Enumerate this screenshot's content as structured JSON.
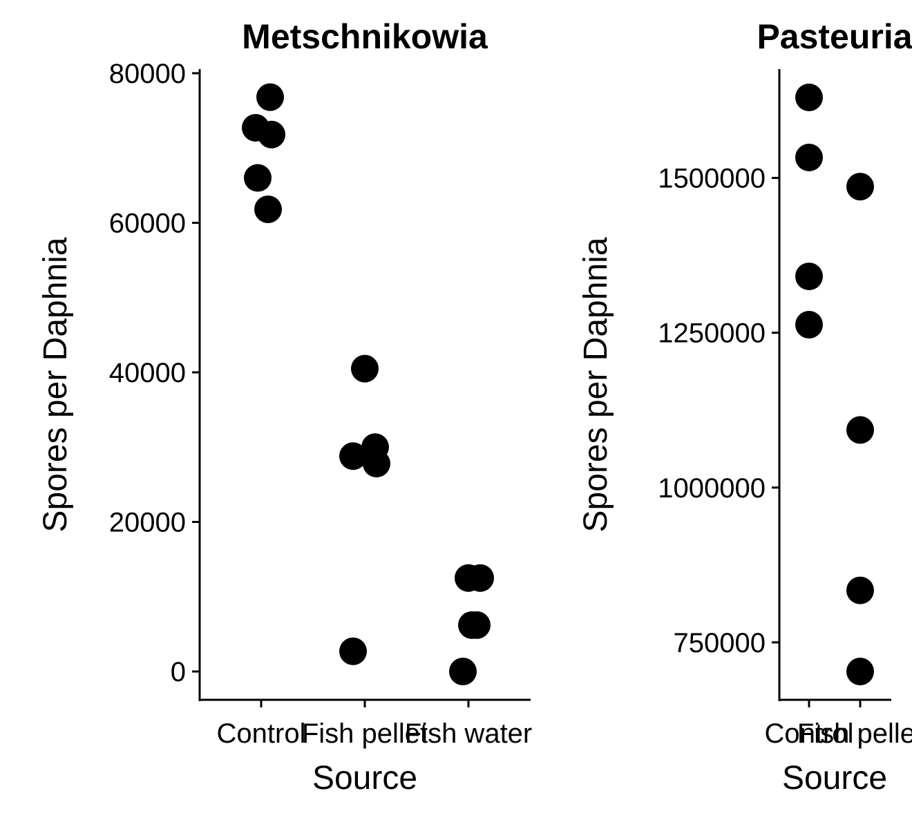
{
  "chart_data": [
    {
      "type": "scatter",
      "title": "Metschnikowia",
      "xlabel": "Source",
      "ylabel": "Spores per Daphnia",
      "categories": [
        "Control",
        "Fish pellet",
        "Fish water"
      ],
      "yticks": [
        0,
        20000,
        40000,
        60000,
        80000
      ],
      "ylim": [
        -3700,
        80000
      ],
      "grid": false,
      "legend": "none",
      "point_color": "#000000",
      "points": [
        {
          "x": "Control",
          "y": 76800
        },
        {
          "x": "Control",
          "y": 72700
        },
        {
          "x": "Control",
          "y": 71800
        },
        {
          "x": "Control",
          "y": 66000
        },
        {
          "x": "Control",
          "y": 61800
        },
        {
          "x": "Fish pellet",
          "y": 40500
        },
        {
          "x": "Fish pellet",
          "y": 30000
        },
        {
          "x": "Fish pellet",
          "y": 28800
        },
        {
          "x": "Fish pellet",
          "y": 27800
        },
        {
          "x": "Fish pellet",
          "y": 2700
        },
        {
          "x": "Fish water",
          "y": 12500
        },
        {
          "x": "Fish water",
          "y": 12500
        },
        {
          "x": "Fish water",
          "y": 6200
        },
        {
          "x": "Fish water",
          "y": 6200
        },
        {
          "x": "Fish water",
          "y": 0
        }
      ]
    },
    {
      "type": "scatter",
      "title": "Pasteuria",
      "xlabel": "Source",
      "ylabel": "Spores per Daphnia",
      "categories": [
        "Control",
        "Fish pellet"
      ],
      "yticks": [
        750000,
        1000000,
        1250000,
        1500000
      ],
      "ylim": [
        690000,
        1675000
      ],
      "grid": false,
      "legend": "none",
      "point_color": "#000000",
      "points": [
        {
          "x": "Control",
          "y": 1630000
        },
        {
          "x": "Control",
          "y": 1533000
        },
        {
          "x": "Control",
          "y": 1341000
        },
        {
          "x": "Control",
          "y": 1263000
        },
        {
          "x": "Fish pellet",
          "y": 1486000
        },
        {
          "x": "Fish pellet",
          "y": 1093000
        },
        {
          "x": "Fish pellet",
          "y": 834000
        },
        {
          "x": "Fish pellet",
          "y": 703000
        }
      ]
    }
  ]
}
